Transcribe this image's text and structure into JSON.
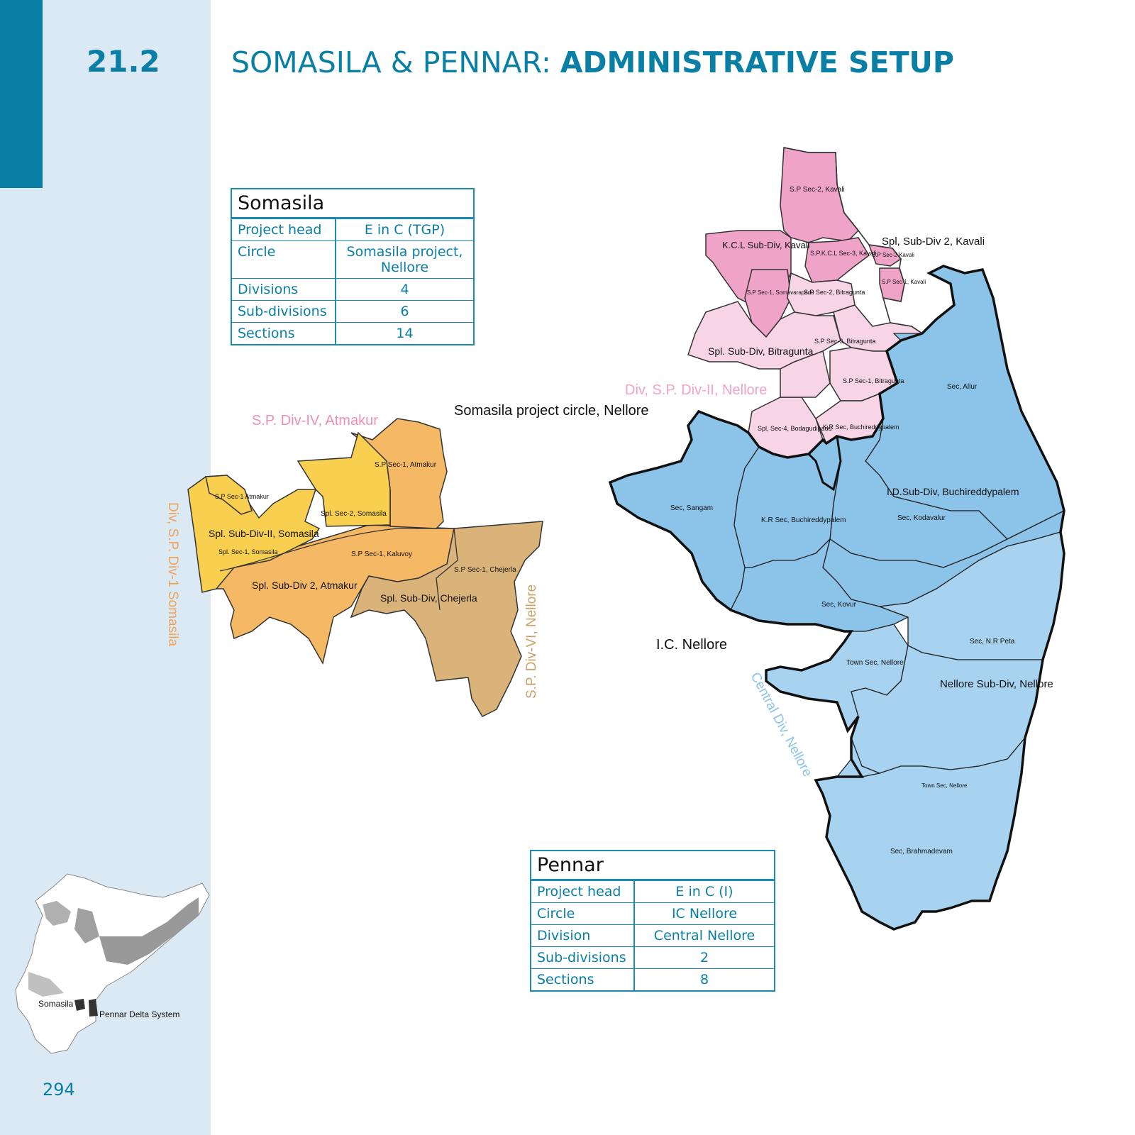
{
  "header": {
    "section_number": "21.2",
    "title_light": "SOMASILA & PENNAR: ",
    "title_bold": "ADMINISTRATIVE SETUP"
  },
  "page_number": "294",
  "colors": {
    "accent": "#0a7fa6",
    "sidebar": "#dbe9f4",
    "pink_region": "#f0a3c8",
    "light_pink_region": "#f7d4e6",
    "orange_region": "#f5b865",
    "yellow_region": "#f8cf4f",
    "tan_region": "#d9b37a",
    "blue_region": "#8cc3e8",
    "light_blue_region": "#a7d3f0"
  },
  "somasila_table": {
    "title": "Somasila",
    "rows": [
      {
        "key": "Project head",
        "value": "E in C (TGP)"
      },
      {
        "key": "Circle",
        "value": "Somasila project, Nellore"
      },
      {
        "key": "Divisions",
        "value": "4"
      },
      {
        "key": "Sub-divisions",
        "value": "6"
      },
      {
        "key": "Sections",
        "value": "14"
      }
    ]
  },
  "pennar_table": {
    "title": "Pennar",
    "rows": [
      {
        "key": "Project head",
        "value": "E in C (I)"
      },
      {
        "key": "Circle",
        "value": "IC Nellore"
      },
      {
        "key": "Division",
        "value": "Central Nellore"
      },
      {
        "key": "Sub-divisions",
        "value": "2"
      },
      {
        "key": "Sections",
        "value": "8"
      }
    ]
  },
  "map": {
    "circle_label": "Somasila project circle, Nellore",
    "ic_label": "I.C. Nellore",
    "division_labels": {
      "sp_div_iv": "S.P. Div-IV, Atmakur",
      "sp_div_ii": "Div, S.P. Div-II, Nellore",
      "sp_div_i": "Div, S.P. Div-1 Somasila",
      "sp_div_vi": "S.P. Div-VI, Nellore",
      "central_div": "Central Div, Nellore"
    },
    "north_regions": {
      "sp_sec2_kavali": "S.P Sec-2, Kavali",
      "kcl_subdiv": "K.C.L Sub-Div, Kavali",
      "spl_subdiv2_kavali": "Spl, Sub-Div 2, Kavali",
      "sp_kcl_sec3": "S.P.K.C.L Sec-3, Kavali",
      "sp_sec2_kavali_small": "S.P Sec-2 Kavali",
      "sp_sec1_kavali": "S.P Sec-1, Kavali",
      "sp_sec1_soma": "S.P Sec-1, Somavarapadu",
      "sp_sec2_bitra": "S.P Sec-2, Bitragunta",
      "sp_sec3_bitra": "S.P Sec-3, Bitragunta",
      "spl_subdiv_bitra": "Spl. Sub-Div, Bitragunta",
      "sp_sec1_bitra": "S.P Sec-1, Bitragunta",
      "spl_sec4": "Spl, Sec-4, Bodagudipadu",
      "kr_sec_north": "K.R Sec, Buchireddypalem"
    },
    "west_regions": {
      "sp_sec1_atmakur": "S.P Sec-1, Atmakur",
      "sp_sec1_atmakur_small": "S.P Sec-1 Atmakur",
      "spl_sec2_somasila": "Spl. Sec-2, Somasila",
      "spl_subdiv_ii_somasila": "Spl. Sub-Div-II, Somasila",
      "spl_sec1_somasila": "Spl. Sec-1, Somasila",
      "sp_sec1_kaluvoy": "S.P Sec-1, Kaluvoy",
      "sp_sec1_chejerla": "S.P Sec-1, Chejerla",
      "spl_subdiv2_atmakur": "Spl. Sub-Div 2, Atmakur",
      "spl_subdiv_chejerla": "Spl. Sub-Div, Chejerla"
    },
    "east_regions": {
      "sec_allur": "Sec, Allur",
      "sec_sangam": "Sec, Sangam",
      "kr_sec": "K.R Sec, Buchireddypalem",
      "id_subdiv": "I.D.Sub-Div, Buchireddypalem",
      "sec_kodavalur": "Sec, Kodavalur",
      "sec_kovur": "Sec, Kovur",
      "sec_nr_peta": "Sec, N.R Peta",
      "town_sec_nellore": "Town Sec, Nellore",
      "nellore_subdiv": "Nellore Sub-Div, Nellore",
      "town_sec_nellore_small": "Town Sec, Nellore",
      "sec_brahmadevam": "Sec, Brahmadevam"
    }
  },
  "inset": {
    "somasila": "Somasila",
    "pennar": "Pennar Delta System"
  }
}
